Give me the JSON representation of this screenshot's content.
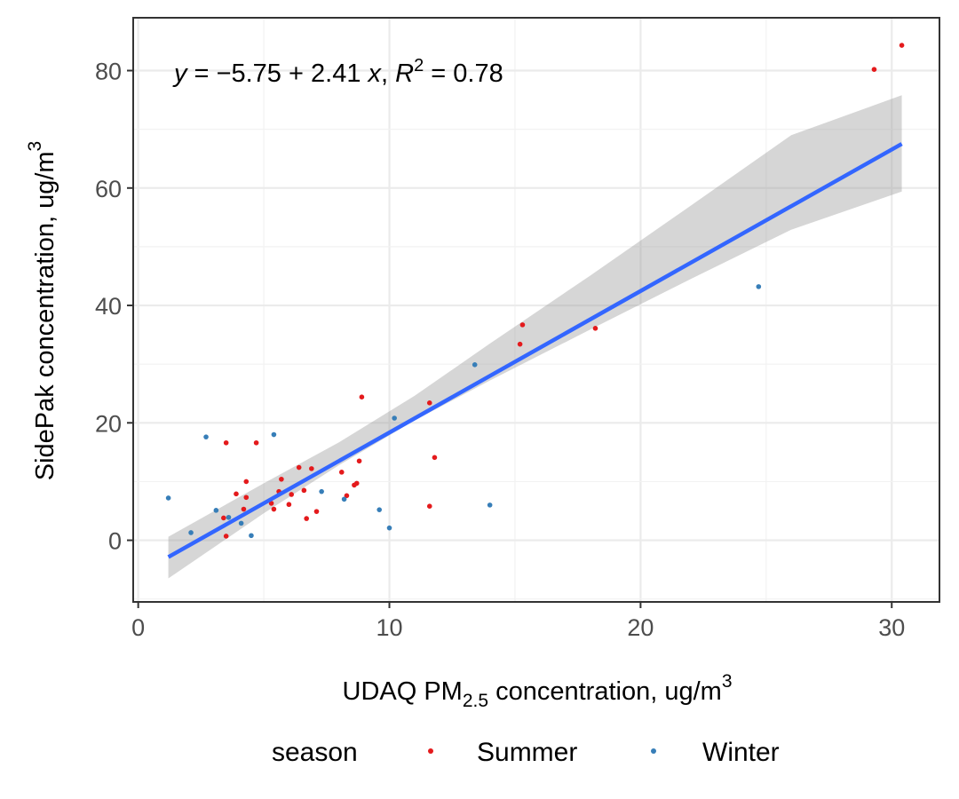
{
  "chart_data": {
    "type": "scatter",
    "title": "",
    "annotation": {
      "y_var": "y",
      "equals": " = ",
      "intercept": "−5.75",
      "plus": " + ",
      "slope": "2.41",
      "x_var": "x",
      "separator": ", ",
      "r_var": "R",
      "r_exp": "2",
      "r_value": "0.78"
    },
    "xlabel": {
      "prefix": "UDAQ PM",
      "subscript": "2.5",
      "suffix": " concentration, ug/m",
      "superscript": "3"
    },
    "ylabel": {
      "text": "SidePak concentration, ug/m",
      "superscript": "3"
    },
    "xlim": [
      -0.2,
      31.9
    ],
    "ylim": [
      -10.5,
      89
    ],
    "x_ticks": [
      0,
      10,
      20,
      30
    ],
    "x_tick_labels": [
      "0",
      "10",
      "20",
      "30"
    ],
    "y_ticks": [
      0,
      20,
      40,
      60,
      80
    ],
    "y_tick_labels": [
      "0",
      "20",
      "40",
      "60",
      "80"
    ],
    "grid": true,
    "fit_line": {
      "method": "linear",
      "intercept": -5.75,
      "slope": 2.41,
      "x_range": [
        1.2,
        30.4
      ],
      "color": "#3366FF",
      "ribbon_color": "#999999",
      "ribbon": [
        {
          "x": 1.2,
          "lower": -6.5,
          "upper": 0.6
        },
        {
          "x": 5,
          "lower": 4.6,
          "upper": 9.7
        },
        {
          "x": 8,
          "lower": 12.8,
          "upper": 16.7
        },
        {
          "x": 11,
          "lower": 20.4,
          "upper": 24.6
        },
        {
          "x": 14,
          "lower": 27.2,
          "upper": 33.5
        },
        {
          "x": 18,
          "lower": 35.9,
          "upper": 45.1
        },
        {
          "x": 22,
          "lower": 44.5,
          "upper": 57.0
        },
        {
          "x": 26,
          "lower": 52.9,
          "upper": 69.0
        },
        {
          "x": 30.4,
          "lower": 59.4,
          "upper": 75.8
        }
      ]
    },
    "legend": {
      "title": "season",
      "position": "bottom",
      "entries": [
        {
          "name": "Summer",
          "color": "#E41A1C"
        },
        {
          "name": "Winter",
          "color": "#377EB8"
        }
      ]
    },
    "series": [
      {
        "name": "Summer",
        "color": "#E41A1C",
        "points": [
          [
            3.5,
            16.6
          ],
          [
            4.7,
            16.6
          ],
          [
            8.9,
            24.4
          ],
          [
            11.6,
            23.4
          ],
          [
            11.8,
            14.1
          ],
          [
            11.6,
            5.8
          ],
          [
            15.2,
            33.4
          ],
          [
            15.3,
            36.7
          ],
          [
            18.2,
            36.1
          ],
          [
            29.3,
            80.2
          ],
          [
            30.4,
            84.3
          ],
          [
            3.4,
            3.8
          ],
          [
            3.5,
            0.7
          ],
          [
            3.9,
            7.9
          ],
          [
            4.2,
            5.3
          ],
          [
            4.3,
            7.3
          ],
          [
            4.3,
            10.0
          ],
          [
            5.3,
            6.3
          ],
          [
            5.4,
            5.3
          ],
          [
            5.6,
            8.3
          ],
          [
            5.7,
            10.4
          ],
          [
            6.0,
            6.1
          ],
          [
            6.1,
            7.8
          ],
          [
            6.4,
            12.4
          ],
          [
            6.6,
            8.5
          ],
          [
            6.7,
            3.7
          ],
          [
            6.9,
            12.2
          ],
          [
            7.1,
            4.9
          ],
          [
            8.1,
            11.6
          ],
          [
            8.3,
            7.6
          ],
          [
            8.6,
            9.4
          ],
          [
            8.7,
            9.7
          ],
          [
            8.8,
            13.5
          ]
        ]
      },
      {
        "name": "Winter",
        "color": "#377EB8",
        "points": [
          [
            1.2,
            7.2
          ],
          [
            2.1,
            1.3
          ],
          [
            2.7,
            17.6
          ],
          [
            3.1,
            5.1
          ],
          [
            3.6,
            3.9
          ],
          [
            4.1,
            2.9
          ],
          [
            4.5,
            0.8
          ],
          [
            5.4,
            18.0
          ],
          [
            7.3,
            8.3
          ],
          [
            8.2,
            7.0
          ],
          [
            9.6,
            5.2
          ],
          [
            10.0,
            2.1
          ],
          [
            10.2,
            20.8
          ],
          [
            13.4,
            29.9
          ],
          [
            14.0,
            6.0
          ],
          [
            24.7,
            43.2
          ]
        ]
      }
    ]
  }
}
